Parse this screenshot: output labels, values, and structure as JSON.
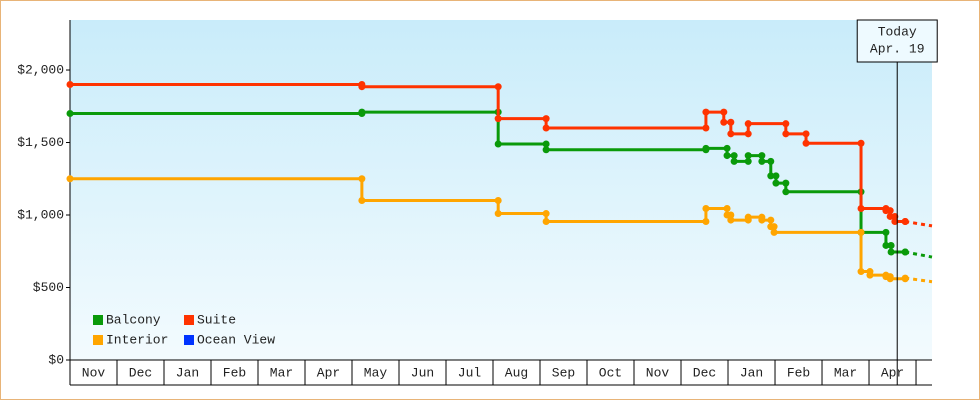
{
  "chart_data": {
    "type": "step",
    "categories": [
      "Nov",
      "Dec",
      "Jan",
      "Feb",
      "Mar",
      "Apr",
      "May",
      "Jun",
      "Jul",
      "Aug",
      "Sep",
      "Oct",
      "Nov",
      "Dec",
      "Jan",
      "Feb",
      "Mar",
      "Apr"
    ],
    "xlim": [
      0,
      18.34
    ],
    "ylim": [
      0,
      2345
    ],
    "yticks": [
      {
        "value": 0,
        "label": "$0"
      },
      {
        "value": 500,
        "label": "$500"
      },
      {
        "value": 1000,
        "label": "$1,000"
      },
      {
        "value": 1500,
        "label": "$1,500"
      },
      {
        "value": 2000,
        "label": "$2,000"
      }
    ],
    "legend": "lower left",
    "today": {
      "x": 17.6,
      "label": [
        "Today",
        "Apr. 19"
      ]
    },
    "series": [
      {
        "name": "Balcony",
        "color": "#0a9a0a",
        "x": [
          0,
          6.21,
          9.11,
          10.13,
          13.53,
          13.98,
          14.13,
          14.43,
          14.72,
          14.91,
          15.02,
          15.23,
          16.83,
          17.36,
          17.47,
          17.77
        ],
        "values": [
          1700,
          1710,
          1490,
          1450,
          1460,
          1410,
          1370,
          1410,
          1370,
          1270,
          1220,
          1160,
          880,
          790,
          745,
          745
        ],
        "forecast": {
          "x": [
            17.77,
            18.34
          ],
          "values": [
            745,
            710
          ]
        }
      },
      {
        "name": "Suite",
        "color": "#ff3300",
        "x": [
          0,
          6.21,
          9.11,
          10.13,
          13.53,
          13.91,
          14.06,
          14.43,
          15.23,
          15.66,
          16.83,
          17.36,
          17.45,
          17.55,
          17.77
        ],
        "values": [
          1900,
          1885,
          1665,
          1600,
          1710,
          1640,
          1560,
          1630,
          1560,
          1495,
          1045,
          1030,
          990,
          955,
          955
        ],
        "forecast": {
          "x": [
            17.77,
            18.34
          ],
          "values": [
            955,
            925
          ]
        }
      },
      {
        "name": "Interior",
        "color": "#ffa500",
        "x": [
          0,
          6.21,
          9.11,
          10.13,
          13.53,
          13.98,
          14.06,
          14.43,
          14.72,
          14.91,
          14.98,
          16.83,
          17.02,
          17.36,
          17.45,
          17.77
        ],
        "values": [
          1250,
          1100,
          1010,
          955,
          1045,
          1000,
          965,
          985,
          965,
          920,
          880,
          610,
          585,
          575,
          560,
          565
        ],
        "forecast": {
          "x": [
            17.77,
            18.34
          ],
          "values": [
            565,
            540
          ]
        }
      },
      {
        "name": "Ocean View",
        "color": "#0033ff",
        "x": [],
        "values": [],
        "forecast": {
          "x": [],
          "values": []
        }
      }
    ]
  }
}
